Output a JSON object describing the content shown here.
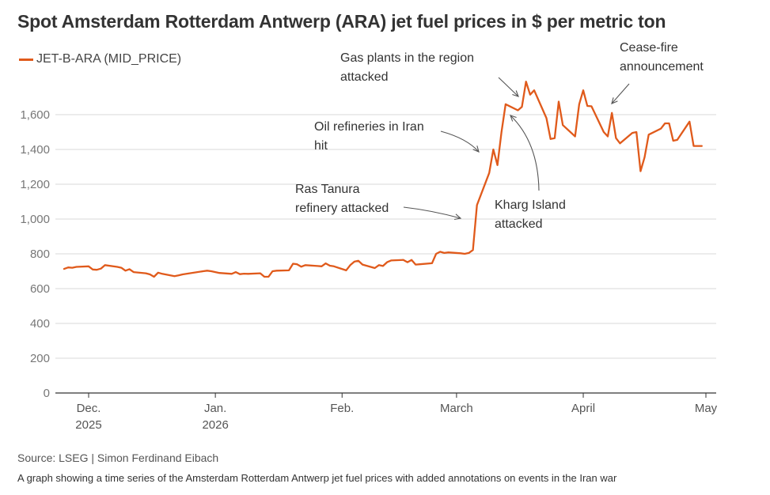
{
  "title": "Spot Amsterdam Rotterdam Antwerp (ARA) jet fuel prices in $ per metric ton",
  "source": "LSEG | Simon Ferdinand Eibach",
  "source_prefix": "Source: ",
  "caption": "A graph showing a time series of the Amsterdam Rotterdam Antwerp jet fuel prices with added annotations on events in the Iran war",
  "colors": {
    "series": "#e05a1b",
    "grid": "#d9d9d9",
    "axis": "#333333",
    "annotation": "#555555"
  },
  "chart_data": {
    "type": "line",
    "ylim": [
      0,
      1800
    ],
    "yticks": [
      0,
      200,
      400,
      600,
      800,
      "1,000",
      "1,200",
      "1,400",
      "1,600"
    ],
    "ytick_values": [
      0,
      200,
      400,
      600,
      800,
      1000,
      1200,
      1400,
      1600
    ],
    "xlim": [
      "2025-11-25",
      "2026-05-01"
    ],
    "xticks": [
      {
        "date": "2025-12-01",
        "label": [
          "Dec.",
          "2025"
        ]
      },
      {
        "date": "2026-01-01",
        "label": [
          "Jan.",
          "2026"
        ]
      },
      {
        "date": "2026-02-01",
        "label": [
          "Feb."
        ]
      },
      {
        "date": "2026-03-01",
        "label": [
          "March"
        ]
      },
      {
        "date": "2026-04-01",
        "label": [
          "April"
        ]
      },
      {
        "date": "2026-05-01",
        "label": [
          "May"
        ]
      }
    ],
    "grid": true,
    "legend": "top-left",
    "series": [
      {
        "name": "JET-B-ARA (MID_PRICE)",
        "x": [
          "2025-11-25",
          "2025-11-26",
          "2025-11-27",
          "2025-11-28",
          "2025-12-01",
          "2025-12-02",
          "2025-12-03",
          "2025-12-04",
          "2025-12-05",
          "2025-12-08",
          "2025-12-09",
          "2025-12-10",
          "2025-12-11",
          "2025-12-12",
          "2025-12-15",
          "2025-12-16",
          "2025-12-17",
          "2025-12-18",
          "2025-12-19",
          "2025-12-22",
          "2025-12-23",
          "2025-12-24",
          "2025-12-29",
          "2025-12-30",
          "2025-12-31",
          "2026-01-02",
          "2026-01-05",
          "2026-01-06",
          "2026-01-07",
          "2026-01-08",
          "2026-01-09",
          "2026-01-12",
          "2026-01-13",
          "2026-01-14",
          "2026-01-15",
          "2026-01-16",
          "2026-01-19",
          "2026-01-20",
          "2026-01-21",
          "2026-01-22",
          "2026-01-23",
          "2026-01-26",
          "2026-01-27",
          "2026-01-28",
          "2026-01-29",
          "2026-01-30",
          "2026-02-02",
          "2026-02-03",
          "2026-02-04",
          "2026-02-05",
          "2026-02-06",
          "2026-02-09",
          "2026-02-10",
          "2026-02-11",
          "2026-02-12",
          "2026-02-13",
          "2026-02-16",
          "2026-02-17",
          "2026-02-18",
          "2026-02-19",
          "2026-02-20",
          "2026-02-23",
          "2026-02-24",
          "2026-02-25",
          "2026-02-26",
          "2026-02-27",
          "2026-03-02",
          "2026-03-03",
          "2026-03-04",
          "2026-03-05",
          "2026-03-06",
          "2026-03-09",
          "2026-03-10",
          "2026-03-11",
          "2026-03-12",
          "2026-03-13",
          "2026-03-16",
          "2026-03-17",
          "2026-03-18",
          "2026-03-19",
          "2026-03-20",
          "2026-03-23",
          "2026-03-24",
          "2026-03-25",
          "2026-03-26",
          "2026-03-27",
          "2026-03-30",
          "2026-03-31",
          "2026-04-01",
          "2026-04-02",
          "2026-04-03",
          "2026-04-06",
          "2026-04-07",
          "2026-04-08",
          "2026-04-09",
          "2026-04-10",
          "2026-04-13",
          "2026-04-14",
          "2026-04-15",
          "2026-04-16",
          "2026-04-17",
          "2026-04-20",
          "2026-04-21",
          "2026-04-22",
          "2026-04-23",
          "2026-04-24",
          "2026-04-27",
          "2026-04-28",
          "2026-04-29",
          "2026-04-30"
        ],
        "y": [
          713,
          722,
          720,
          725,
          728,
          710,
          708,
          715,
          735,
          725,
          720,
          703,
          712,
          695,
          688,
          682,
          668,
          692,
          685,
          672,
          676,
          682,
          700,
          703,
          700,
          690,
          685,
          695,
          683,
          686,
          685,
          688,
          668,
          668,
          700,
          703,
          705,
          743,
          740,
          726,
          735,
          730,
          728,
          745,
          732,
          728,
          705,
          735,
          755,
          760,
          738,
          718,
          735,
          730,
          752,
          762,
          765,
          752,
          765,
          738,
          740,
          746,
          800,
          812,
          805,
          808,
          803,
          800,
          805,
          822,
          1080,
          1265,
          1400,
          1310,
          1500,
          1660,
          1625,
          1645,
          1790,
          1715,
          1740,
          1580,
          1460,
          1465,
          1675,
          1540,
          1475,
          1660,
          1740,
          1650,
          1648,
          1500,
          1475,
          1610,
          1465,
          1435,
          1495,
          1500,
          1275,
          1355,
          1485,
          1520,
          1550,
          1550,
          1450,
          1455,
          1560,
          1420,
          1420,
          1420
        ]
      }
    ],
    "annotations": [
      {
        "lines": [
          "Gas plants in the region",
          "attacked"
        ],
        "date": "2026-03-18",
        "value": 1660
      },
      {
        "lines": [
          "Cease-fire",
          "announcement"
        ],
        "date": "2026-04-06",
        "value": 1650
      },
      {
        "lines": [
          "Oil refineries in Iran",
          "hit"
        ],
        "date": "2026-03-05",
        "value": 1390
      },
      {
        "lines": [
          "Kharg Island",
          "attacked"
        ],
        "date": "2026-03-14",
        "value": 1600
      },
      {
        "lines": [
          "Ras Tanura",
          "refinery attacked"
        ],
        "date": "2026-03-02",
        "value": 990
      }
    ]
  }
}
